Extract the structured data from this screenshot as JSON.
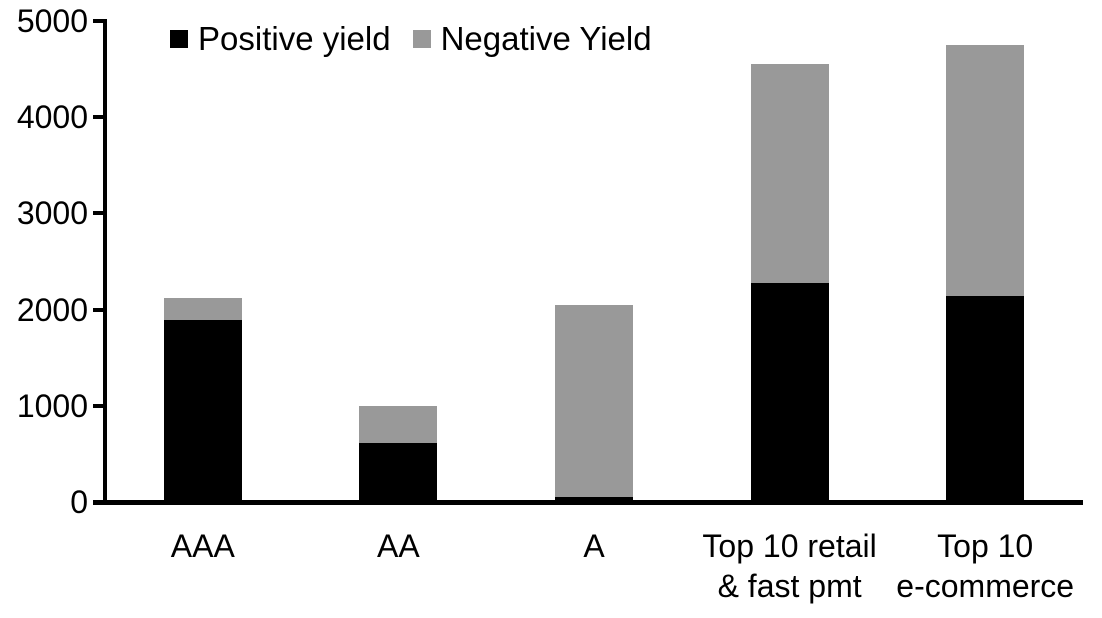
{
  "chart_data": {
    "type": "bar",
    "stacked": true,
    "title": "",
    "xlabel": "",
    "ylabel": "",
    "categories": [
      "AAA",
      "AA",
      "A",
      "Top 10 retail\n& fast pmt",
      "Top 10\ne-commerce"
    ],
    "series": [
      {
        "name": "Positive yield",
        "color": "#000000",
        "values": [
          1890,
          615,
          50,
          2280,
          2140
        ]
      },
      {
        "name": "Negative Yield",
        "color": "#999999",
        "values": [
          230,
          385,
          2000,
          2270,
          2610
        ]
      }
    ],
    "totals": [
      2120,
      1000,
      2050,
      4550,
      4750
    ],
    "ylim": [
      0,
      5000
    ],
    "yticks": [
      0,
      1000,
      2000,
      3000,
      4000,
      5000
    ],
    "grid": false,
    "legend_position": "top-left",
    "axis_color": "#000000",
    "background_color": "#ffffff"
  }
}
